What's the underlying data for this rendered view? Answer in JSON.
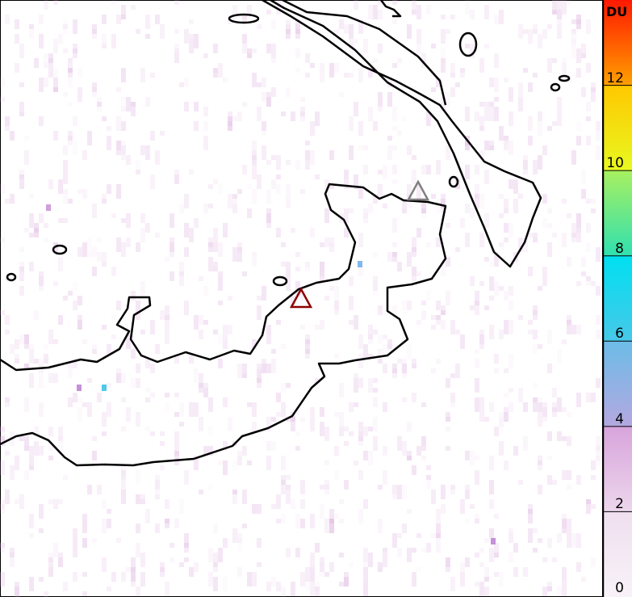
{
  "colorbar": {
    "unit": "DU",
    "min": 0,
    "max": 14,
    "ticks": [
      {
        "value": 0,
        "label": "0"
      },
      {
        "value": 2,
        "label": "2"
      },
      {
        "value": 4,
        "label": "4"
      },
      {
        "value": 6,
        "label": "6"
      },
      {
        "value": 8,
        "label": "8"
      },
      {
        "value": 10,
        "label": "10"
      },
      {
        "value": 12,
        "label": "12"
      }
    ],
    "colors": [
      {
        "from": 0,
        "to": 2,
        "c1": "#f8f2f8",
        "c2": "#efdff0"
      },
      {
        "from": 2,
        "to": 4,
        "c1": "#ecd6ec",
        "c2": "#d8a4dc"
      },
      {
        "from": 4,
        "to": 6,
        "c1": "#b4a8e0",
        "c2": "#6cbce8"
      },
      {
        "from": 6,
        "to": 8,
        "c1": "#48c8e8",
        "c2": "#00e0f0"
      },
      {
        "from": 8,
        "to": 10,
        "c1": "#30e0b0",
        "c2": "#a8f060"
      },
      {
        "from": 10,
        "to": 12,
        "c1": "#e8f820",
        "c2": "#ffc800"
      },
      {
        "from": 12,
        "to": 14,
        "c1": "#ffa000",
        "c2": "#ff1800"
      }
    ]
  },
  "markers": [
    {
      "type": "volcano-triangle",
      "color": "#8b0000"
    },
    {
      "type": "volcano-triangle",
      "color": "#808080"
    }
  ],
  "field_color": "#d9a8dc"
}
